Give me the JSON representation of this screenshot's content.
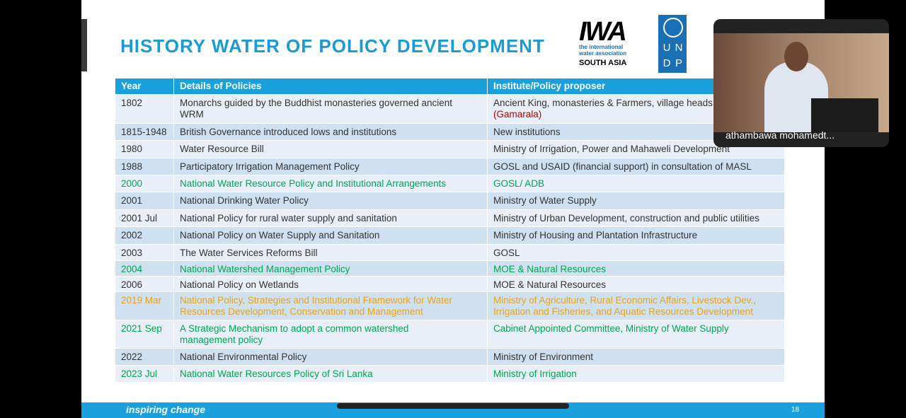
{
  "slide": {
    "title": "HISTORY WATER OF POLICY DEVELOPMENT",
    "logos": {
      "iwa_mark": "IWA",
      "iwa_name": "the international water association",
      "iwa_region": "SOUTH ASIA",
      "undp": [
        "U",
        "N",
        "D",
        "P"
      ]
    },
    "footer": {
      "tagline": "inspiring change",
      "page": "18"
    }
  },
  "table": {
    "header": [
      "Year",
      "Details of Policies",
      "Institute/Policy proposer"
    ],
    "rows": [
      {
        "year": "1802",
        "details": "Monarchs guided by the Buddhist monasteries governed ancient WRM",
        "institute": "Ancient King, monasteries & Farmers, village heads",
        "institute_note": "(Gamarala)",
        "note_color": "#c00000",
        "color": "#333333"
      },
      {
        "year": "1815-1948",
        "details": "British Governance introduced lows and institutions",
        "institute": "New institutions",
        "color": "#333333"
      },
      {
        "year": "1980",
        "details": "Water Resource Bill",
        "institute": "Ministry of Irrigation, Power and Mahaweli Development",
        "color": "#333333"
      },
      {
        "year": "1988",
        "details": "Participatory Irrigation Management Policy",
        "institute": "GOSL and USAID (financial support) in consultation of MASL",
        "color": "#333333"
      },
      {
        "year": "2000",
        "details": "National Water Resource Policy and Institutional Arrangements",
        "institute": "GOSL/ ADB",
        "color": "#00a651"
      },
      {
        "year": "2001",
        "details": "National Drinking Water Policy",
        "institute": "Ministry of Water Supply",
        "color": "#333333"
      },
      {
        "year": "2001 Jul",
        "details": "National Policy for rural water supply and sanitation",
        "institute": "Ministry of Urban Development, construction and public utilities",
        "color": "#333333"
      },
      {
        "year": "2002",
        "details": "National Policy on Water Supply and Sanitation",
        "institute": "Ministry of Housing and Plantation Infrastructure",
        "color": "#333333"
      },
      {
        "year": "2003",
        "details": "The Water Services Reforms Bill",
        "institute": "GOSL",
        "color": "#333333"
      },
      {
        "year": "2004",
        "details": "National Watershed Management Policy",
        "institute": "MOE & Natural Resources",
        "color": "#00a651"
      },
      {
        "year": "2006",
        "details": "National Policy on Wetlands",
        "institute": "MOE & Natural Resources",
        "color": "#333333"
      },
      {
        "year": "2019 Mar",
        "details": "National Policy, Strategies and Institutional Framework for Water Resources Development, Conservation and Management",
        "institute": "Ministry of Agriculture, Rural Economic Affairs, Livestock Dev., Irrigation and Fisheries, and Aquatic Resources Development",
        "color": "#e8a317"
      },
      {
        "year": "2021 Sep",
        "details": "A Strategic Mechanism to adopt a common watershed management policy",
        "institute": "Cabinet Appointed Committee, Ministry  of Water Supply",
        "color": "#00a651"
      },
      {
        "year": "2022",
        "details": "National Environmental Policy",
        "institute": "Ministry  of Environment",
        "color": "#333333"
      },
      {
        "year": "2023 Jul",
        "details": "National Water Resources Policy of Sri Lanka",
        "institute": "Ministry  of Irrigation",
        "color": "#00a651"
      }
    ]
  },
  "video": {
    "participant": "athambawa mohamedt..."
  }
}
